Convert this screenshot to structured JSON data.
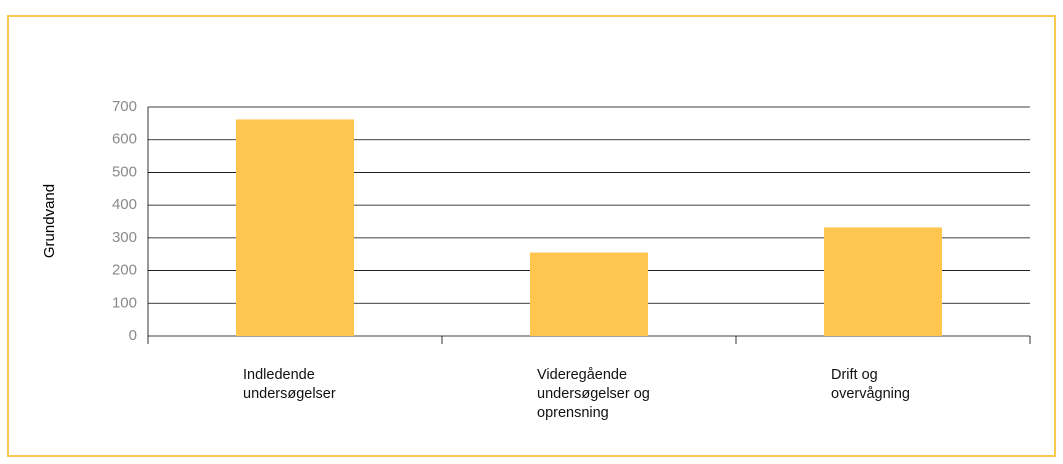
{
  "chart_data": {
    "type": "bar",
    "y_label": "Grundvand",
    "categories": [
      "Indledende undersøgelser",
      "Videregående undersøgelser og oprensning",
      "Drift og overvågning"
    ],
    "values": [
      662,
      255,
      332
    ],
    "color": "#fec54f",
    "ylim": [
      0,
      700
    ],
    "yticks": [
      0,
      100,
      200,
      300,
      400,
      500,
      600,
      700
    ],
    "grid": true
  }
}
